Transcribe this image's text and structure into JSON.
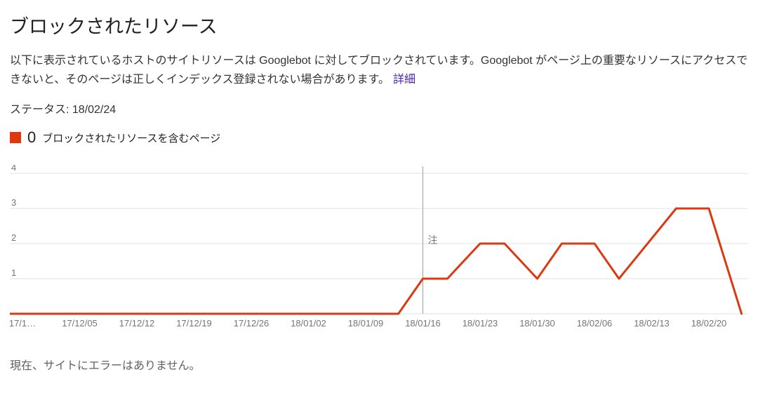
{
  "page": {
    "title": "ブロックされたリソース",
    "description": "以下に表示されているホストのサイトリソースは Googlebot に対してブロックされています。Googlebot がページ上の重要なリソースにアクセスできないと、そのページは正しくインデックス登録されない場合があります。",
    "details_link": "詳細",
    "details_link_color": "#4b22b5",
    "status_label": "ステータス: 18/02/24",
    "footer_message": "現在、サイトにエラーはありません。"
  },
  "legend": {
    "count": "0",
    "label": "ブロックされたリソースを含むページ",
    "color": "#dc3912"
  },
  "chart_data": {
    "type": "line",
    "title": "",
    "ylabel": "",
    "xlabel": "",
    "ylim": [
      0,
      4
    ],
    "y_ticks": [
      0,
      1,
      2,
      3,
      4
    ],
    "grid": true,
    "colors": {
      "grid": "#e0e0e0",
      "axis_label": "#757575",
      "annotation_line": "#9e9e9e",
      "annotation_text": "#757575"
    },
    "x_ticks": [
      {
        "date": "17/11/28",
        "label": "17/1…"
      },
      {
        "date": "17/12/05",
        "label": "17/12/05"
      },
      {
        "date": "17/12/12",
        "label": "17/12/12"
      },
      {
        "date": "17/12/19",
        "label": "17/12/19"
      },
      {
        "date": "17/12/26",
        "label": "17/12/26"
      },
      {
        "date": "18/01/02",
        "label": "18/01/02"
      },
      {
        "date": "18/01/09",
        "label": "18/01/09"
      },
      {
        "date": "18/01/16",
        "label": "18/01/16"
      },
      {
        "date": "18/01/23",
        "label": "18/01/23"
      },
      {
        "date": "18/01/30",
        "label": "18/01/30"
      },
      {
        "date": "18/02/06",
        "label": "18/02/06"
      },
      {
        "date": "18/02/13",
        "label": "18/02/13"
      },
      {
        "date": "18/02/20",
        "label": "18/02/20"
      }
    ],
    "annotation": {
      "date": "18/01/16",
      "label": "注"
    },
    "series": [
      {
        "name": "ブロックされたリソースを含むページ",
        "color": "#dc3912",
        "points": [
          {
            "date": "17/11/26",
            "value": 0
          },
          {
            "date": "18/01/13",
            "value": 0
          },
          {
            "date": "18/01/16",
            "value": 1
          },
          {
            "date": "18/01/19",
            "value": 1
          },
          {
            "date": "18/01/23",
            "value": 2
          },
          {
            "date": "18/01/26",
            "value": 2
          },
          {
            "date": "18/01/30",
            "value": 1
          },
          {
            "date": "18/02/02",
            "value": 2
          },
          {
            "date": "18/02/06",
            "value": 2
          },
          {
            "date": "18/02/09",
            "value": 1
          },
          {
            "date": "18/02/16",
            "value": 3
          },
          {
            "date": "18/02/20",
            "value": 3
          },
          {
            "date": "18/02/24",
            "value": 0
          }
        ]
      }
    ]
  }
}
